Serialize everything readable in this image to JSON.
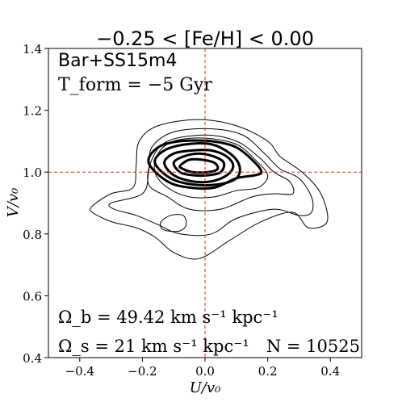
{
  "chart_data": {
    "type": "contour",
    "title": "−0.25 < [Fe/H] < 0.00",
    "xlabel": "U/v₀",
    "ylabel": "V/v₀",
    "xlim": [
      -0.5,
      0.5
    ],
    "ylim": [
      0.4,
      1.4
    ],
    "xticks": [
      "−0.4",
      "−0.2",
      "0.0",
      "0.2",
      "0.4"
    ],
    "xtick_values": [
      -0.4,
      -0.2,
      0.0,
      0.2,
      0.4
    ],
    "yticks": [
      "0.4",
      "0.6",
      "0.8",
      "1.0",
      "1.2",
      "1.4"
    ],
    "ytick_values": [
      0.4,
      0.6,
      0.8,
      1.0,
      1.2,
      1.4
    ],
    "grid": false,
    "reference_lines": {
      "x": 0.0,
      "y": 1.0,
      "color": "#e8201e",
      "style": "dashed"
    },
    "annotations": {
      "model": "Bar+SS15m4",
      "tform": "T_form = −5 Gyr",
      "omega_b": "Ω_b = 49.42 km s⁻¹ kpc⁻¹",
      "omega_s": "Ω_s = 21 km s⁻¹ kpc⁻¹",
      "n_stars": "N = 10525"
    },
    "contours": [
      {
        "level": 1,
        "weight": "thin",
        "points": [
          [
            -0.36,
            0.89
          ],
          [
            -0.3,
            0.93
          ],
          [
            -0.23,
            0.95
          ],
          [
            -0.22,
            1.02
          ],
          [
            -0.21,
            1.1
          ],
          [
            -0.15,
            1.15
          ],
          [
            -0.02,
            1.17
          ],
          [
            0.1,
            1.15
          ],
          [
            0.2,
            1.1
          ],
          [
            0.24,
            1.05
          ],
          [
            0.31,
            1.0
          ],
          [
            0.37,
            0.93
          ],
          [
            0.39,
            0.84
          ],
          [
            0.33,
            0.82
          ],
          [
            0.28,
            0.87
          ],
          [
            0.18,
            0.84
          ],
          [
            0.08,
            0.78
          ],
          [
            -0.02,
            0.72
          ],
          [
            -0.1,
            0.74
          ],
          [
            -0.16,
            0.79
          ],
          [
            -0.22,
            0.82
          ],
          [
            -0.3,
            0.84
          ],
          [
            -0.36,
            0.87
          ]
        ]
      },
      {
        "level": 2,
        "weight": "thin",
        "points": [
          [
            -0.3,
            0.9
          ],
          [
            -0.2,
            0.93
          ],
          [
            -0.18,
            1.0
          ],
          [
            -0.17,
            1.08
          ],
          [
            -0.1,
            1.13
          ],
          [
            0.02,
            1.14
          ],
          [
            0.12,
            1.12
          ],
          [
            0.19,
            1.06
          ],
          [
            0.24,
            1.01
          ],
          [
            0.3,
            0.98
          ],
          [
            0.34,
            0.92
          ],
          [
            0.34,
            0.87
          ],
          [
            0.3,
            0.86
          ],
          [
            0.22,
            0.88
          ],
          [
            0.1,
            0.85
          ],
          [
            0.02,
            0.8
          ],
          [
            -0.08,
            0.8
          ],
          [
            -0.15,
            0.83
          ],
          [
            -0.22,
            0.86
          ],
          [
            -0.29,
            0.88
          ]
        ]
      },
      {
        "level": 3,
        "weight": "thin",
        "points": [
          [
            -0.18,
            0.96
          ],
          [
            -0.17,
            1.04
          ],
          [
            -0.12,
            1.1
          ],
          [
            0.0,
            1.12
          ],
          [
            0.1,
            1.1
          ],
          [
            0.17,
            1.05
          ],
          [
            0.22,
            1.0
          ],
          [
            0.27,
            0.97
          ],
          [
            0.28,
            0.93
          ],
          [
            0.22,
            0.93
          ],
          [
            0.15,
            0.92
          ],
          [
            0.05,
            0.88
          ],
          [
            -0.05,
            0.88
          ],
          [
            -0.12,
            0.92
          ]
        ]
      },
      {
        "level": 4,
        "weight": "thin",
        "points": [
          [
            -0.16,
            1.0
          ],
          [
            -0.15,
            1.06
          ],
          [
            -0.1,
            1.1
          ],
          [
            0.0,
            1.11
          ],
          [
            0.1,
            1.09
          ],
          [
            0.16,
            1.04
          ],
          [
            0.2,
            0.99
          ],
          [
            0.17,
            0.95
          ],
          [
            0.1,
            0.94
          ],
          [
            0.03,
            0.92
          ],
          [
            -0.05,
            0.92
          ],
          [
            -0.12,
            0.95
          ]
        ]
      },
      {
        "level": 5,
        "weight": "thick",
        "points": [
          [
            -0.18,
            1.03
          ],
          [
            -0.15,
            1.08
          ],
          [
            -0.08,
            1.1
          ],
          [
            0.02,
            1.1
          ],
          [
            0.1,
            1.08
          ],
          [
            0.16,
            1.03
          ],
          [
            0.18,
            1.0
          ],
          [
            0.16,
            0.99
          ],
          [
            0.1,
            0.98
          ],
          [
            0.03,
            0.95
          ],
          [
            -0.05,
            0.95
          ],
          [
            -0.12,
            0.97
          ]
        ]
      },
      {
        "level": 6,
        "weight": "thick",
        "points": [
          [
            -0.16,
            1.03
          ],
          [
            -0.13,
            1.07
          ],
          [
            -0.06,
            1.09
          ],
          [
            0.02,
            1.09
          ],
          [
            0.08,
            1.06
          ],
          [
            0.11,
            1.02
          ],
          [
            0.1,
            0.98
          ],
          [
            0.04,
            0.96
          ],
          [
            -0.04,
            0.96
          ],
          [
            -0.11,
            0.98
          ]
        ]
      },
      {
        "level": 7,
        "weight": "thick",
        "points": [
          [
            -0.13,
            1.03
          ],
          [
            -0.1,
            1.06
          ],
          [
            -0.04,
            1.07
          ],
          [
            0.02,
            1.07
          ],
          [
            0.07,
            1.05
          ],
          [
            0.09,
            1.02
          ],
          [
            0.07,
            0.99
          ],
          [
            0.02,
            0.97
          ],
          [
            -0.04,
            0.97
          ],
          [
            -0.1,
            0.99
          ]
        ]
      },
      {
        "level": 8,
        "weight": "thick",
        "points": [
          [
            -0.1,
            1.03
          ],
          [
            -0.07,
            1.05
          ],
          [
            -0.02,
            1.06
          ],
          [
            0.03,
            1.05
          ],
          [
            0.06,
            1.03
          ],
          [
            0.05,
            1.0
          ],
          [
            0.01,
            0.99
          ],
          [
            -0.04,
            0.99
          ],
          [
            -0.08,
            1.0
          ]
        ]
      },
      {
        "level": 9,
        "weight": "thick",
        "points": [
          [
            -0.08,
            1.02
          ],
          [
            -0.05,
            1.04
          ],
          [
            -0.01,
            1.04
          ],
          [
            0.03,
            1.03
          ],
          [
            0.04,
            1.01
          ],
          [
            0.01,
            1.0
          ],
          [
            -0.04,
            1.0
          ],
          [
            -0.07,
            1.01
          ]
        ]
      },
      {
        "level": 10,
        "weight": "thin",
        "points": [
          [
            -0.14,
            0.84
          ],
          [
            -0.11,
            0.86
          ],
          [
            -0.07,
            0.86
          ],
          [
            -0.06,
            0.83
          ],
          [
            -0.08,
            0.81
          ],
          [
            -0.12,
            0.81
          ],
          [
            -0.14,
            0.82
          ]
        ]
      }
    ]
  }
}
